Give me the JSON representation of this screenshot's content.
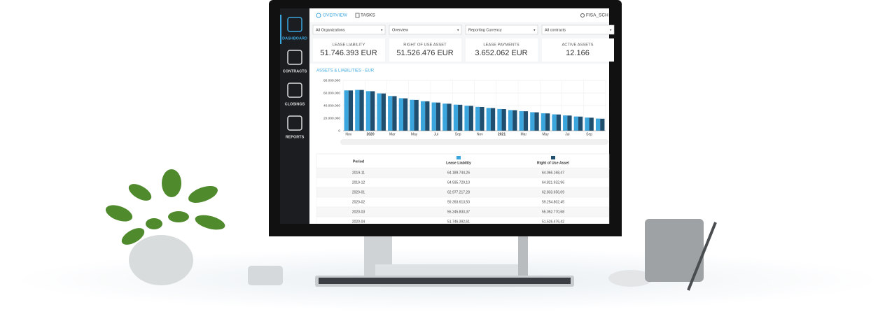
{
  "sidebar": [
    "DASHBOARD",
    "CONTRACTS",
    "CLOSINGS",
    "REPORTS"
  ],
  "tabs": [
    "OVERVIEW",
    "TASKS"
  ],
  "user": "FISA_SCH",
  "filters": [
    "All Organizations",
    "Overview",
    "Reporting Currency",
    "All contracts"
  ],
  "cards": [
    {
      "label": "LEASE LIABILITY",
      "value": "51.746.393 EUR"
    },
    {
      "label": "RIGHT OF USE ASSET",
      "value": "51.526.476 EUR"
    },
    {
      "label": "LEASE PAYMENTS",
      "value": "3.652.062 EUR"
    },
    {
      "label": "ACTIVE ASSETS",
      "value": "12.166"
    }
  ],
  "chart_data": {
    "type": "bar",
    "title": "ASSETS & LIABILITIES - EUR",
    "categories": [
      "Nov",
      null,
      "2020",
      null,
      "Mar",
      null,
      "May",
      null,
      "Jul",
      null,
      "Sep",
      null,
      "Nov",
      null,
      "2021",
      null,
      "Mar",
      null,
      "May",
      null,
      "Jul",
      null,
      "Sep",
      null
    ],
    "series": [
      {
        "name": "Lease Liability",
        "color": "#3aa6dd",
        "values": [
          64189744,
          64935729,
          62977217,
          59393613,
          55245833,
          51746393,
          49200000,
          47000000,
          45000000,
          43200000,
          41500000,
          39800000,
          38000000,
          36300000,
          34600000,
          32900000,
          31200000,
          29500000,
          27800000,
          26100000,
          24400000,
          22700000,
          21000000,
          19300000
        ]
      },
      {
        "name": "Right of Use Asset",
        "color": "#1f4e6e",
        "values": [
          64066168,
          64821932,
          62833656,
          59254802,
          55052770,
          51526476,
          49000000,
          46800000,
          44800000,
          43000000,
          41300000,
          39600000,
          37800000,
          36100000,
          34400000,
          32700000,
          31000000,
          29300000,
          27600000,
          25900000,
          24200000,
          22500000,
          20800000,
          19100000
        ]
      }
    ],
    "ylim": [
      0,
      80000000
    ],
    "yticks": [
      0,
      {
        "value": 20000000,
        "label": "20.000.000"
      },
      {
        "value": 40000000,
        "label": "40.000.000"
      },
      {
        "value": 60000000,
        "label": "60.000.000"
      },
      {
        "value": 80000000,
        "label": "80.000.000"
      }
    ],
    "grid": true
  },
  "table": {
    "columns": [
      "Period"
    ],
    "rows": [
      [
        "2019-11",
        "64.189.744,26",
        "64.066.168,47"
      ],
      [
        "2019-12",
        "64.935.729,10",
        "64.821.932,96"
      ],
      [
        "2020-01",
        "62.977.217,28",
        "62.833.656,09"
      ],
      [
        "2020-02",
        "59.393.613,50",
        "59.254.802,45"
      ],
      [
        "2020-03",
        "55.245.833,37",
        "55.052.770,68"
      ],
      [
        "2020-04",
        "51.746.392,61",
        "51.526.476,42"
      ]
    ]
  }
}
